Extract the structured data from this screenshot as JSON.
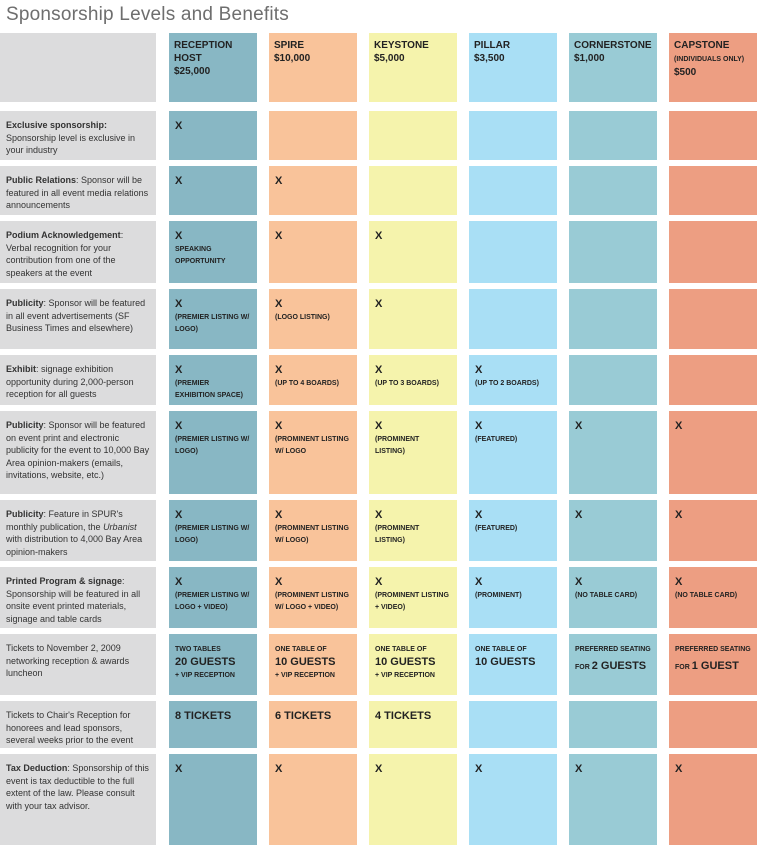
{
  "title": "Sponsorship Levels and Benefits",
  "levels": [
    {
      "name": "RECEPTION HOST",
      "price": "$25,000",
      "color": "#88b7c4"
    },
    {
      "name": "SPIRE",
      "price": "$10,000",
      "color": "#f9c39a"
    },
    {
      "name": "KEYSTONE",
      "price": "$5,000",
      "color": "#f5f3ac"
    },
    {
      "name": "PILLAR",
      "price": "$3,500",
      "color": "#a9dff5"
    },
    {
      "name": "CORNERSTONE",
      "price": "$1,000",
      "color": "#99cbd5"
    },
    {
      "name": "CAPSTONE",
      "note": "(INDIVIDUALS ONLY)",
      "price": "$500",
      "color": "#ed9e82"
    }
  ],
  "rows": [
    {
      "bold": "Exclusive sponsorship:",
      "rest": " Sponsorship level is exclusive in your industry",
      "cells": [
        {
          "mark": "X"
        },
        {},
        {},
        {},
        {},
        {}
      ]
    },
    {
      "bold": "Public Relations",
      "rest": ": Sponsor will be featured in all event media relations announcements",
      "cells": [
        {
          "mark": "X"
        },
        {
          "mark": "X"
        },
        {},
        {},
        {},
        {}
      ]
    },
    {
      "bold": "Podium Acknowledgement",
      "rest": ": Verbal recognition for your contribution from one of the speakers at the event",
      "cells": [
        {
          "mark": "X",
          "note": "SPEAKING OPPORTUNITY"
        },
        {
          "mark": "X"
        },
        {
          "mark": "X"
        },
        {},
        {},
        {}
      ]
    },
    {
      "bold": "Publicity",
      "rest": ": Sponsor will be featured in all event advertisements (SF Business Times and elsewhere)",
      "cells": [
        {
          "mark": "X",
          "note": "(PREMIER LISTING W/ LOGO)"
        },
        {
          "mark": "X",
          "note": "(LOGO LISTING)"
        },
        {
          "mark": "X"
        },
        {},
        {},
        {}
      ]
    },
    {
      "bold": "Exhibit",
      "rest": ": signage exhibition opportunity during 2,000-person reception for all guests",
      "cells": [
        {
          "mark": "X",
          "note": "(PREMIER EXHIBITION SPACE)"
        },
        {
          "mark": "X",
          "note": "(UP TO 4 BOARDS)"
        },
        {
          "mark": "X",
          "note": "(UP TO 3 BOARDS)"
        },
        {
          "mark": "X",
          "note": "(UP TO 2 BOARDS)"
        },
        {},
        {}
      ]
    },
    {
      "bold": "Publicity",
      "rest": ": Sponsor will be featured on event print and electronic publicity for the event to 10,000 Bay Area opinion-makers (emails, invitations, website, etc.)",
      "cells": [
        {
          "mark": "X",
          "note": "(PREMIER LISTING W/ LOGO)"
        },
        {
          "mark": "X",
          "note": "(PROMINENT LISTING W/ LOGO"
        },
        {
          "mark": "X",
          "note": "(PROMINENT LISTING)"
        },
        {
          "mark": "X",
          "note": "(FEATURED)"
        },
        {
          "mark": "X"
        },
        {
          "mark": "X"
        }
      ]
    },
    {
      "bold": "Publicity",
      "rest": ": Feature in SPUR's monthly publication, the ",
      "italic": "Urbanist",
      "rest2": " with distribution to 4,000 Bay Area opinion-makers",
      "cells": [
        {
          "mark": "X",
          "note": "(PREMIER LISTING W/ LOGO)"
        },
        {
          "mark": "X",
          "note": "(PROMINENT LISTING W/ LOGO)"
        },
        {
          "mark": "X",
          "note": "(PROMINENT LISTING)"
        },
        {
          "mark": "X",
          "note": "(FEATURED)"
        },
        {
          "mark": "X"
        },
        {
          "mark": "X"
        }
      ]
    },
    {
      "bold": "Printed Program & signage",
      "rest": ": Sponsorship will be featured in all onsite event printed materials, signage and table cards",
      "cells": [
        {
          "mark": "X",
          "note": "(PREMIER LISTING W/ LOGO + VIDEO)"
        },
        {
          "mark": "X",
          "note": "(PROMINENT LISTING W/ LOGO + VIDEO)"
        },
        {
          "mark": "X",
          "note": "(PROMINENT LISTING + VIDEO)"
        },
        {
          "mark": "X",
          "note": "(PROMINENT)"
        },
        {
          "mark": "X",
          "note": "(NO TABLE CARD)"
        },
        {
          "mark": "X",
          "note": "(NO TABLE CARD)"
        }
      ]
    },
    {
      "bold": "",
      "rest": "Tickets to November 2, 2009 networking reception & awards luncheon",
      "cells": [
        {
          "pre": "TWO TABLES",
          "big": "20 GUESTS",
          "post": "+ VIP RECEPTION"
        },
        {
          "pre": "ONE TABLE OF",
          "big": "10 GUESTS",
          "post": "+ VIP RECEPTION"
        },
        {
          "pre": "ONE TABLE OF",
          "big": "10 GUESTS",
          "post": "+ VIP RECEPTION"
        },
        {
          "pre": "ONE TABLE OF",
          "big": "10 GUESTS"
        },
        {
          "pre": "PREFERRED SEATING",
          "pre2": "FOR ",
          "inline": "2 GUESTS"
        },
        {
          "pre": "PREFERRED SEATING",
          "pre2": "FOR ",
          "inline": "1 GUEST"
        }
      ]
    },
    {
      "bold": "",
      "rest": "Tickets to Chair's Reception for honorees and lead sponsors, several weeks prior to the event",
      "cells": [
        {
          "big": "8 TICKETS"
        },
        {
          "big": "6 TICKETS"
        },
        {
          "big": "4 TICKETS"
        },
        {},
        {},
        {}
      ]
    },
    {
      "bold": "Tax Deduction",
      "rest": ": Sponsorship of this event is tax deductible to the full extent of the law. Please consult with your tax advisor.",
      "cells": [
        {
          "mark": "X"
        },
        {
          "mark": "X"
        },
        {
          "mark": "X"
        },
        {
          "mark": "X"
        },
        {
          "mark": "X"
        },
        {
          "mark": "X"
        }
      ]
    }
  ]
}
